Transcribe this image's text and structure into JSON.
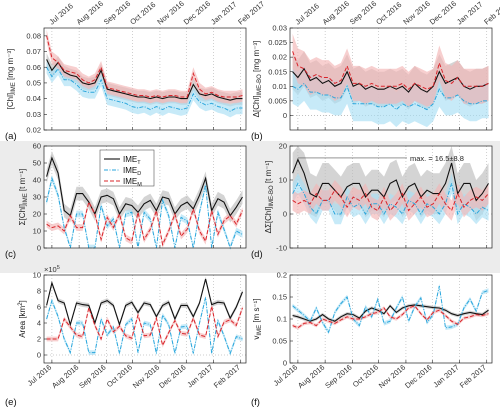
{
  "colors": {
    "T": "#111111",
    "D": "#2aa6dc",
    "M": "#d9242a",
    "band_T": "#bdbdbd",
    "band_D": "#a9def5",
    "band_M": "#f2b5b5",
    "grey_bg": "#ececec"
  },
  "legend": {
    "T": "IME",
    "T_sub": "T",
    "D": "IME",
    "D_sub": "D",
    "M": "IME",
    "M_sub": "M"
  },
  "axes": {
    "dates": [
      "Jul 2016",
      "Aug 2016",
      "Sep 2016",
      "Oct 2016",
      "Nov 2016",
      "Dec 2016",
      "Jan 2017",
      "Feb 2017"
    ]
  },
  "chart_data": [
    {
      "type": "line",
      "panel": "(a)",
      "ylabel": "[Chl]",
      "ylabel_sub": "IME",
      "ylabel_unit": " [mg m⁻³]",
      "ylim": [
        0.02,
        0.085
      ],
      "yticks": [
        "0.02",
        "0.03",
        "0.04",
        "0.05",
        "0.06",
        "0.07",
        "0.08"
      ],
      "grid": "vertical dotted",
      "x": [
        "2016-06-25",
        "2016-07-01",
        "2016-07-08",
        "2016-07-15",
        "2016-07-22",
        "2016-07-29",
        "2016-08-05",
        "2016-08-12",
        "2016-08-19",
        "2016-08-26",
        "2016-09-02",
        "2016-09-09",
        "2016-09-16",
        "2016-09-23",
        "2016-09-30",
        "2016-10-07",
        "2016-10-14",
        "2016-10-21",
        "2016-10-28",
        "2016-11-04",
        "2016-11-11",
        "2016-11-18",
        "2016-11-25",
        "2016-12-02",
        "2016-12-09",
        "2016-12-16",
        "2016-12-23",
        "2016-12-30",
        "2017-01-06",
        "2017-01-13",
        "2017-01-20",
        "2017-01-27",
        "2017-02-03"
      ],
      "series": [
        {
          "key": "T",
          "values": [
            0.065,
            0.058,
            0.063,
            0.057,
            0.055,
            0.054,
            0.05,
            0.049,
            0.05,
            0.058,
            0.046,
            0.045,
            0.044,
            0.043,
            0.042,
            0.041,
            0.041,
            0.04,
            0.041,
            0.04,
            0.041,
            0.041,
            0.04,
            0.04,
            0.049,
            0.043,
            0.042,
            0.043,
            0.041,
            0.04,
            0.039,
            0.04,
            0.04
          ],
          "band": 0.004
        },
        {
          "key": "D",
          "values": [
            0.06,
            0.054,
            0.059,
            0.052,
            0.052,
            0.049,
            0.045,
            0.044,
            0.044,
            0.052,
            0.04,
            0.039,
            0.038,
            0.037,
            0.035,
            0.034,
            0.035,
            0.033,
            0.035,
            0.033,
            0.035,
            0.034,
            0.033,
            0.034,
            0.043,
            0.038,
            0.036,
            0.037,
            0.035,
            0.034,
            0.032,
            0.034,
            0.034
          ],
          "band": 0.004
        },
        {
          "key": "M",
          "values": [
            0.08,
            0.066,
            0.063,
            0.058,
            0.057,
            0.056,
            0.052,
            0.05,
            0.052,
            0.06,
            0.047,
            0.046,
            0.045,
            0.044,
            0.043,
            0.042,
            0.042,
            0.041,
            0.042,
            0.041,
            0.042,
            0.042,
            0.041,
            0.041,
            0.056,
            0.046,
            0.043,
            0.044,
            0.042,
            0.041,
            0.041,
            0.041,
            0.042
          ],
          "band": 0.004
        }
      ]
    },
    {
      "type": "line",
      "panel": "(b)",
      "ylabel": "Δ[Chl]",
      "ylabel_sub": "IME-BO",
      "ylabel_unit": " [mg m⁻³]",
      "ylim": [
        -0.005,
        0.03
      ],
      "yticks": [
        "0",
        "0.005",
        "0.01",
        "0.015",
        "0.02",
        "0.025",
        "0.03"
      ],
      "grid": "vertical dotted",
      "x": [
        "2016-06-25",
        "2016-07-01",
        "2016-07-08",
        "2016-07-15",
        "2016-07-22",
        "2016-07-29",
        "2016-08-05",
        "2016-08-12",
        "2016-08-19",
        "2016-08-26",
        "2016-09-02",
        "2016-09-09",
        "2016-09-16",
        "2016-09-23",
        "2016-09-30",
        "2016-10-07",
        "2016-10-14",
        "2016-10-21",
        "2016-10-28",
        "2016-11-04",
        "2016-11-11",
        "2016-11-18",
        "2016-11-25",
        "2016-12-02",
        "2016-12-09",
        "2016-12-16",
        "2016-12-23",
        "2016-12-30",
        "2017-01-06",
        "2017-01-13",
        "2017-01-20",
        "2017-01-27",
        "2017-02-03"
      ],
      "series": [
        {
          "key": "T",
          "values": [
            0.015,
            0.013,
            0.016,
            0.012,
            0.013,
            0.011,
            0.012,
            0.01,
            0.011,
            0.015,
            0.01,
            0.011,
            0.009,
            0.01,
            0.009,
            0.009,
            0.01,
            0.009,
            0.01,
            0.008,
            0.011,
            0.009,
            0.008,
            0.01,
            0.015,
            0.011,
            0.012,
            0.013,
            0.01,
            0.009,
            0.01,
            0.01,
            0.011
          ],
          "band": 0.006
        },
        {
          "key": "D",
          "values": [
            0.01,
            0.009,
            0.011,
            0.008,
            0.008,
            0.007,
            0.007,
            0.006,
            0.006,
            0.01,
            0.004,
            0.004,
            0.004,
            0.004,
            0.003,
            0.003,
            0.004,
            0.002,
            0.004,
            0.003,
            0.004,
            0.003,
            0.002,
            0.004,
            0.009,
            0.006,
            0.006,
            0.007,
            0.005,
            0.004,
            0.004,
            0.005,
            0.005
          ],
          "band": 0.006
        },
        {
          "key": "M",
          "values": [
            0.022,
            0.017,
            0.016,
            0.013,
            0.014,
            0.013,
            0.013,
            0.011,
            0.012,
            0.017,
            0.011,
            0.011,
            0.01,
            0.011,
            0.01,
            0.01,
            0.01,
            0.01,
            0.011,
            0.009,
            0.011,
            0.01,
            0.009,
            0.01,
            0.018,
            0.012,
            0.011,
            0.013,
            0.01,
            0.01,
            0.01,
            0.01,
            0.011
          ],
          "band": 0.006
        }
      ]
    },
    {
      "type": "line",
      "panel": "(c)",
      "ylabel": "Σ[Chl]",
      "ylabel_sub": "IME",
      "ylabel_unit": " [t m⁻¹]",
      "ylim": [
        0,
        60
      ],
      "yticks": [
        "0",
        "10",
        "20",
        "30",
        "40",
        "50",
        "60"
      ],
      "grid": "vertical dotted",
      "x": [
        "2016-06-25",
        "2016-07-01",
        "2016-07-08",
        "2016-07-15",
        "2016-07-22",
        "2016-07-29",
        "2016-08-05",
        "2016-08-12",
        "2016-08-19",
        "2016-08-26",
        "2016-09-02",
        "2016-09-09",
        "2016-09-16",
        "2016-09-23",
        "2016-09-30",
        "2016-10-07",
        "2016-10-14",
        "2016-10-21",
        "2016-10-28",
        "2016-11-04",
        "2016-11-11",
        "2016-11-18",
        "2016-11-25",
        "2016-12-02",
        "2016-12-09",
        "2016-12-16",
        "2016-12-23",
        "2016-12-30",
        "2017-01-06",
        "2017-01-13",
        "2017-01-20",
        "2017-01-27",
        "2017-02-03"
      ],
      "series": [
        {
          "key": "T",
          "values": [
            42,
            53,
            44,
            22,
            19,
            32,
            32,
            27,
            20,
            30,
            31,
            29,
            20,
            26,
            25,
            21,
            26,
            28,
            22,
            30,
            29,
            20,
            25,
            27,
            23,
            31,
            41,
            22,
            29,
            27,
            19,
            24,
            30
          ],
          "band": 4
        },
        {
          "key": "D",
          "values": [
            27,
            41,
            31,
            12,
            0,
            20,
            20,
            0,
            0,
            25,
            13,
            17,
            0,
            20,
            21,
            0,
            21,
            17,
            0,
            28,
            19,
            0,
            18,
            16,
            0,
            21,
            37,
            0,
            21,
            11,
            0,
            10,
            8
          ],
          "band": 2
        },
        {
          "key": "M",
          "values": [
            14,
            12,
            13,
            10,
            19,
            12,
            12,
            27,
            20,
            5,
            18,
            12,
            20,
            6,
            4,
            21,
            5,
            11,
            22,
            2,
            10,
            20,
            7,
            11,
            23,
            10,
            4,
            22,
            8,
            16,
            19,
            14,
            22
          ],
          "band": 2
        }
      ]
    },
    {
      "type": "line",
      "panel": "(d)",
      "ylabel": "ΔΣ[Chl]",
      "ylabel_sub": "IME-BO",
      "ylabel_unit": " [t m⁻¹]",
      "ylim": [
        -10,
        20
      ],
      "yticks": [
        "-10",
        "0",
        "10",
        "20"
      ],
      "grid": "vertical dotted",
      "annotation": "max. = 16.5±8.8",
      "x": [
        "2016-06-25",
        "2016-07-01",
        "2016-07-08",
        "2016-07-15",
        "2016-07-22",
        "2016-07-29",
        "2016-08-05",
        "2016-08-12",
        "2016-08-19",
        "2016-08-26",
        "2016-09-02",
        "2016-09-09",
        "2016-09-16",
        "2016-09-23",
        "2016-09-30",
        "2016-10-07",
        "2016-10-14",
        "2016-10-21",
        "2016-10-28",
        "2016-11-04",
        "2016-11-11",
        "2016-11-18",
        "2016-11-25",
        "2016-12-02",
        "2016-12-09",
        "2016-12-16",
        "2016-12-23",
        "2016-12-30",
        "2017-01-06",
        "2017-01-13",
        "2017-01-20",
        "2017-01-27",
        "2017-02-03"
      ],
      "series": [
        {
          "key": "T",
          "values": [
            12,
            16,
            12,
            6,
            5,
            9,
            9,
            7,
            5,
            8,
            9,
            9,
            5,
            7,
            7,
            5,
            9,
            10,
            5,
            8,
            9,
            5,
            7,
            6,
            6,
            9,
            15,
            6,
            9,
            9,
            4,
            6,
            9
          ],
          "band": 6
        },
        {
          "key": "D",
          "values": [
            6,
            9,
            6,
            2,
            0,
            4,
            4,
            0,
            0,
            5,
            2,
            3,
            0,
            3,
            3,
            0,
            3,
            2,
            0,
            4,
            3,
            0,
            3,
            2,
            0,
            3,
            9,
            0,
            3,
            2,
            0,
            2,
            1
          ],
          "band": 3
        },
        {
          "key": "M",
          "values": [
            4,
            3,
            4,
            3,
            6,
            4,
            4,
            7,
            5,
            2,
            5,
            4,
            6,
            2,
            1,
            5,
            1,
            3,
            6,
            1,
            3,
            5,
            2,
            3,
            6,
            3,
            1,
            6,
            2,
            4,
            5,
            4,
            6
          ],
          "band": 3
        }
      ]
    },
    {
      "type": "line",
      "panel": "(e)",
      "ylabel": "Area [km",
      "ylabel_sup": "2",
      "ylabel_unit": "]",
      "exponent": "×10",
      "exponent_sup": "5",
      "ylim": [
        -1,
        10
      ],
      "yticks": [
        "0",
        "2",
        "4",
        "6",
        "8",
        "10"
      ],
      "grid": "vertical dotted",
      "x": [
        "2016-06-25",
        "2016-07-01",
        "2016-07-08",
        "2016-07-15",
        "2016-07-22",
        "2016-07-29",
        "2016-08-05",
        "2016-08-12",
        "2016-08-19",
        "2016-08-26",
        "2016-09-02",
        "2016-09-09",
        "2016-09-16",
        "2016-09-23",
        "2016-09-30",
        "2016-10-07",
        "2016-10-14",
        "2016-10-21",
        "2016-10-28",
        "2016-11-04",
        "2016-11-11",
        "2016-11-18",
        "2016-11-25",
        "2016-12-02",
        "2016-12-09",
        "2016-12-16",
        "2016-12-23",
        "2016-12-30",
        "2017-01-06",
        "2017-01-13",
        "2017-01-20",
        "2017-01-27",
        "2017-02-03"
      ],
      "series": [
        {
          "key": "T",
          "values": [
            6.2,
            9.0,
            6.8,
            6.5,
            3.8,
            6.5,
            6.3,
            6.2,
            4.0,
            6.5,
            6.8,
            6.2,
            3.8,
            6.2,
            6.6,
            5.3,
            6.5,
            6.3,
            4.8,
            6.2,
            6.6,
            4.5,
            6.2,
            6.2,
            4.8,
            6.5,
            9.5,
            6.3,
            6.6,
            6.5,
            4.6,
            6.0,
            7.9
          ],
          "band": 0.3
        },
        {
          "key": "D",
          "values": [
            4.5,
            6.8,
            4.8,
            2.0,
            0.3,
            4.0,
            4.0,
            0.3,
            0.3,
            4.5,
            2.5,
            3.5,
            0.2,
            3.8,
            4.5,
            0.3,
            4.0,
            3.8,
            0.2,
            5.0,
            3.8,
            0.2,
            3.5,
            3.6,
            0.2,
            4.0,
            7.2,
            0.2,
            4.3,
            2.4,
            0.2,
            2.3,
            2.0
          ],
          "band": 0.3
        },
        {
          "key": "M",
          "values": [
            2.0,
            2.0,
            2.0,
            4.5,
            3.5,
            2.5,
            2.3,
            5.9,
            3.7,
            2.0,
            4.5,
            2.9,
            3.6,
            2.4,
            2.1,
            5.0,
            2.4,
            2.5,
            4.6,
            1.2,
            2.8,
            4.3,
            2.7,
            2.6,
            4.6,
            2.5,
            2.3,
            6.1,
            2.3,
            4.1,
            4.4,
            3.7,
            5.9
          ],
          "band": 0.3
        }
      ]
    },
    {
      "type": "line",
      "panel": "(f)",
      "ylabel": "v",
      "ylabel_sub": "IME",
      "ylabel_unit": " [m s⁻¹]",
      "ylim": [
        0,
        0.2
      ],
      "yticks": [
        "0",
        "0.05",
        "0.1",
        "0.15",
        "0.2"
      ],
      "grid": "vertical dotted",
      "x": [
        "2016-06-25",
        "2016-07-01",
        "2016-07-08",
        "2016-07-15",
        "2016-07-22",
        "2016-07-29",
        "2016-08-05",
        "2016-08-12",
        "2016-08-19",
        "2016-08-26",
        "2016-09-02",
        "2016-09-09",
        "2016-09-16",
        "2016-09-23",
        "2016-09-30",
        "2016-10-07",
        "2016-10-14",
        "2016-10-21",
        "2016-10-28",
        "2016-11-04",
        "2016-11-11",
        "2016-11-18",
        "2016-11-25",
        "2016-12-02",
        "2016-12-09",
        "2016-12-16",
        "2016-12-23",
        "2016-12-30",
        "2017-01-06",
        "2017-01-13",
        "2017-01-20",
        "2017-01-27",
        "2017-02-03"
      ],
      "series": [
        {
          "key": "T",
          "values": [
            0.108,
            0.105,
            0.1,
            0.095,
            0.1,
            0.11,
            0.1,
            0.095,
            0.105,
            0.112,
            0.11,
            0.102,
            0.118,
            0.125,
            0.12,
            0.112,
            0.13,
            0.115,
            0.125,
            0.13,
            0.132,
            0.13,
            0.128,
            0.126,
            0.125,
            0.12,
            0.112,
            0.108,
            0.112,
            0.115,
            0.112,
            0.11,
            0.12
          ],
          "band": 0.004
        },
        {
          "key": "D",
          "values": [
            0.13,
            0.12,
            0.108,
            0.095,
            0.125,
            0.092,
            0.07,
            0.115,
            0.135,
            0.15,
            0.1,
            0.085,
            0.128,
            0.105,
            0.145,
            0.09,
            0.095,
            0.125,
            0.15,
            0.095,
            0.128,
            0.148,
            0.092,
            0.11,
            0.175,
            0.08,
            0.082,
            0.088,
            0.125,
            0.145,
            0.118,
            0.16,
            0.165
          ],
          "band": 0.005
        },
        {
          "key": "M",
          "values": [
            0.085,
            0.08,
            0.09,
            0.092,
            0.085,
            0.1,
            0.095,
            0.09,
            0.098,
            0.105,
            0.1,
            0.1,
            0.105,
            0.112,
            0.115,
            0.125,
            0.105,
            0.1,
            0.11,
            0.125,
            0.13,
            0.112,
            0.098,
            0.115,
            0.12,
            0.108,
            0.095,
            0.088,
            0.102,
            0.105,
            0.11,
            0.108,
            0.112
          ],
          "band": 0.004
        }
      ]
    }
  ]
}
